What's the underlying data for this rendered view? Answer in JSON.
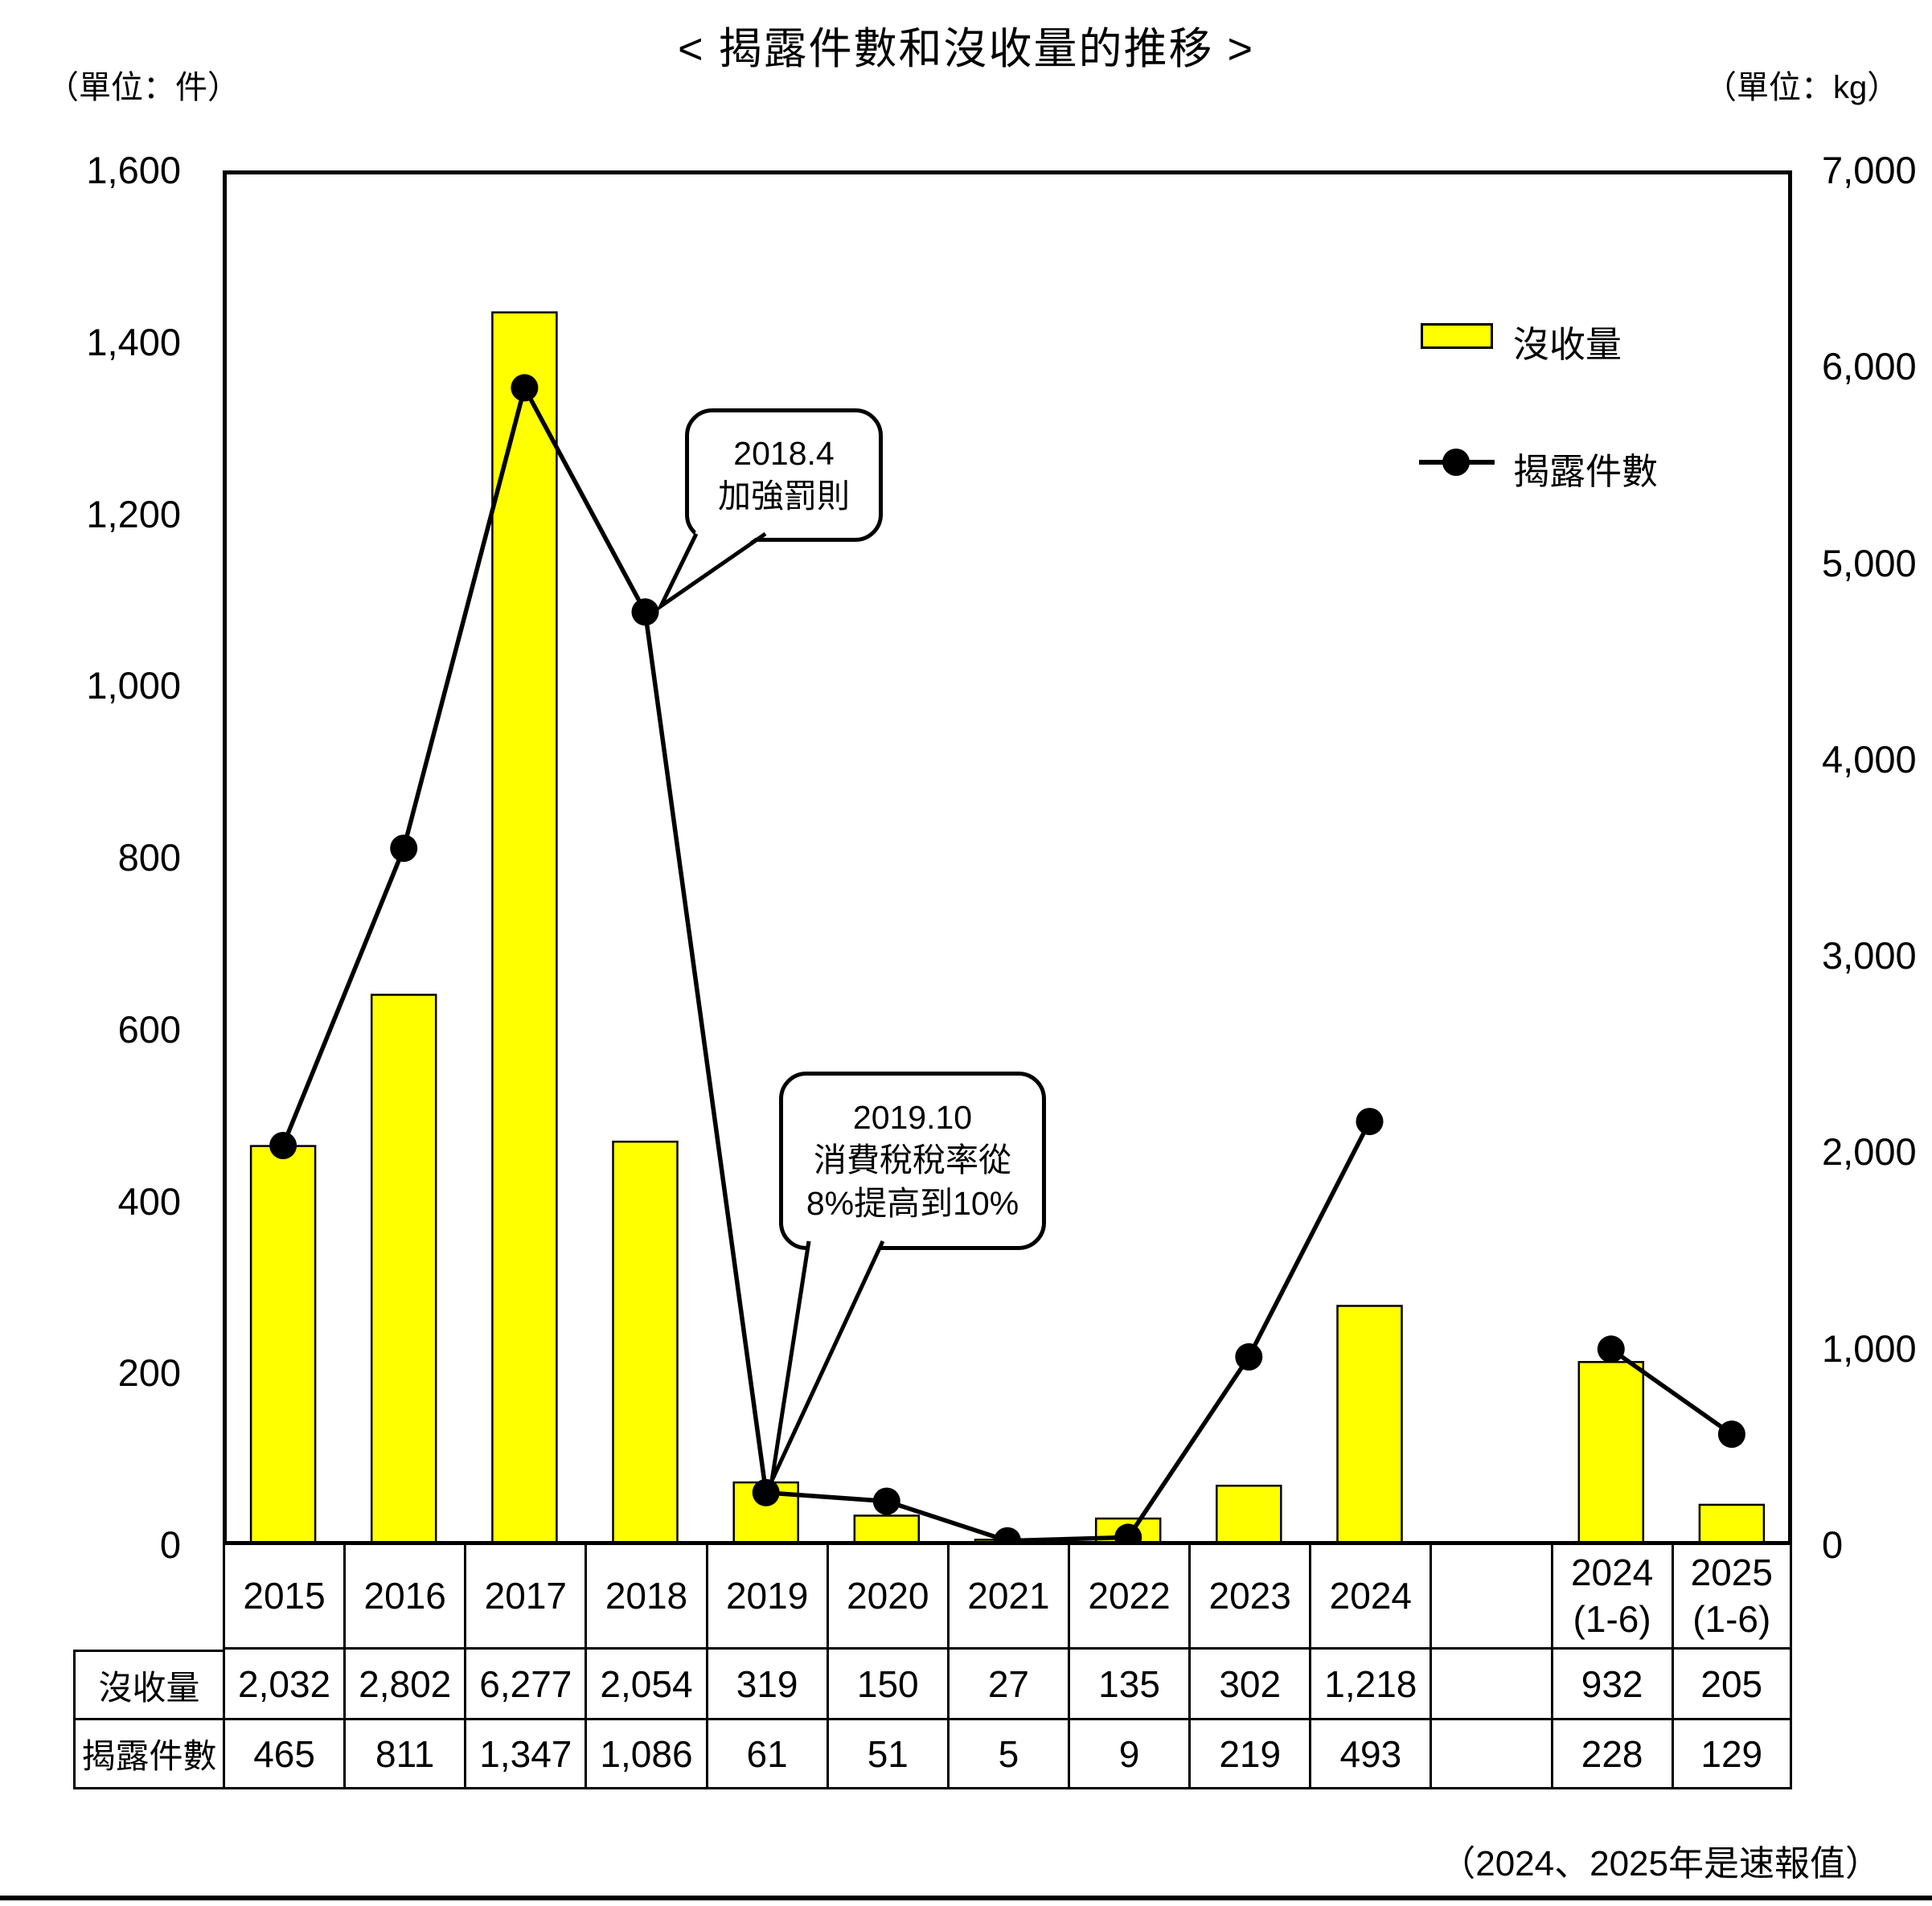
{
  "title": "< 揭露件數和沒收量的推移 >",
  "unit_left": "（單位：件）",
  "unit_right": "（單位：kg）",
  "legend": {
    "bar": "沒收量",
    "line": "揭露件數"
  },
  "footer": "（2024、2025年是速報值）",
  "annotations": [
    {
      "lines": [
        "2018.4",
        "加強罰則"
      ]
    },
    {
      "lines": [
        "2019.10",
        "消費稅稅率從",
        "8%提高到10%"
      ]
    }
  ],
  "chart_data": {
    "type": "bar+line combo",
    "categories": [
      "2015",
      "2016",
      "2017",
      "2018",
      "2019",
      "2020",
      "2021",
      "2022",
      "2023",
      "2024",
      "",
      "2024 (1-6)",
      "2025 (1-6)"
    ],
    "series": [
      {
        "name": "沒收量",
        "type": "bar",
        "axis": "right",
        "color": "#FFFF00",
        "values": [
          2032,
          2802,
          6277,
          2054,
          319,
          150,
          27,
          135,
          302,
          1218,
          null,
          932,
          205
        ]
      },
      {
        "name": "揭露件數",
        "type": "line",
        "axis": "left",
        "color": "#000000",
        "values": [
          465,
          811,
          1347,
          1086,
          61,
          51,
          5,
          9,
          219,
          493,
          null,
          228,
          129
        ]
      }
    ],
    "left_axis": {
      "unit": "件",
      "min": 0,
      "max": 1600,
      "step": 200
    },
    "right_axis": {
      "unit": "kg",
      "min": 0,
      "max": 7000,
      "step": 1000
    },
    "grid": false,
    "legend_position": "inside top-right"
  },
  "table": {
    "year_headers": [
      {
        "l1": "2015",
        "l2": ""
      },
      {
        "l1": "2016",
        "l2": ""
      },
      {
        "l1": "2017",
        "l2": ""
      },
      {
        "l1": "2018",
        "l2": ""
      },
      {
        "l1": "2019",
        "l2": ""
      },
      {
        "l1": "2020",
        "l2": ""
      },
      {
        "l1": "2021",
        "l2": ""
      },
      {
        "l1": "2022",
        "l2": ""
      },
      {
        "l1": "2023",
        "l2": ""
      },
      {
        "l1": "2024",
        "l2": ""
      },
      {
        "l1": "",
        "l2": ""
      },
      {
        "l1": "2024",
        "l2": "(1-6)"
      },
      {
        "l1": "2025",
        "l2": "(1-6)"
      }
    ],
    "rows": [
      {
        "label": "沒收量",
        "values": [
          "2,032",
          "2,802",
          "6,277",
          "2,054",
          "319",
          "150",
          "27",
          "135",
          "302",
          "1,218",
          "",
          "932",
          "205"
        ]
      },
      {
        "label": "揭露件數",
        "values": [
          "465",
          "811",
          "1,347",
          "1,086",
          "61",
          "51",
          "5",
          "9",
          "219",
          "493",
          "",
          "228",
          "129"
        ]
      }
    ]
  }
}
